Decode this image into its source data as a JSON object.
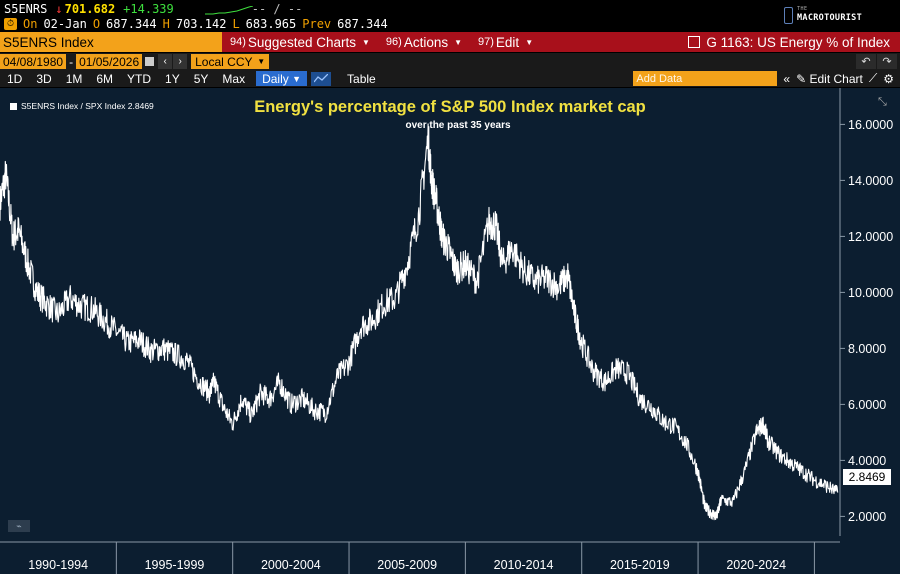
{
  "quote": {
    "ticker": "S5ENRS",
    "arrow": "↓",
    "last": "701.682",
    "change": "+14.339",
    "dashes": "-- / --",
    "on_label": "On",
    "date": "02-Jan",
    "open_label": "O",
    "open": "687.344",
    "high_label": "H",
    "high": "703.142",
    "low_label": "L",
    "low": "683.965",
    "prev_label": "Prev",
    "prev": "687.344"
  },
  "logo": {
    "small": "THE",
    "macro": "MACRO",
    "tourist": "TOURIST"
  },
  "command_bar": {
    "security": "S5ENRS Index",
    "menus": [
      {
        "num": "94)",
        "label": "Suggested Charts"
      },
      {
        "num": "96)",
        "label": "Actions"
      },
      {
        "num": "97)",
        "label": "Edit"
      }
    ],
    "title": "G 1163: US Energy % of Index"
  },
  "date_bar": {
    "start_date": "04/08/1980",
    "end_date": "01/05/2026",
    "separator": "-",
    "currency": "Local CCY"
  },
  "period_bar": {
    "periods": [
      "1D",
      "3D",
      "1M",
      "6M",
      "YTD",
      "1Y",
      "5Y",
      "Max"
    ],
    "frequency": "Daily",
    "table_label": "Table",
    "add_data_placeholder": "Add Data",
    "edit_chart_label": "Edit Chart"
  },
  "chart_data": {
    "type": "line",
    "title": "Energy's percentage of S&P 500 Index market cap",
    "subtitle": "over the past 35 years",
    "legend": [
      {
        "name": "S5ENRS Index / SPX Index 2.8469",
        "color": "#ffffff"
      }
    ],
    "last_value_label": "2.8469",
    "y_ticks": [
      "2.0000",
      "4.0000",
      "6.0000",
      "8.0000",
      "10.0000",
      "12.0000",
      "14.0000",
      "16.0000"
    ],
    "ylim": [
      1.3,
      17.3
    ],
    "x_tick_labels": [
      "1990-1994",
      "1995-1999",
      "2000-2004",
      "2005-2009",
      "2010-2014",
      "2015-2019",
      "2020-2024"
    ],
    "xlim": [
      1990,
      2026.1
    ],
    "series": [
      {
        "name": "S5ENRS Index / SPX Index",
        "x": [
          1990.0,
          1990.25,
          1990.55,
          1990.8,
          1991.2,
          1991.6,
          1992.0,
          1992.5,
          1993.0,
          1993.5,
          1994.0,
          1994.5,
          1995.0,
          1995.5,
          1996.0,
          1996.5,
          1997.0,
          1997.5,
          1998.0,
          1998.5,
          1999.0,
          1999.2,
          1999.6,
          2000.0,
          2000.4,
          2000.8,
          2001.2,
          2001.6,
          2002.0,
          2002.5,
          2003.0,
          2003.5,
          2004.0,
          2004.5,
          2005.0,
          2005.5,
          2006.0,
          2006.5,
          2007.0,
          2007.5,
          2008.0,
          2008.4,
          2008.55,
          2008.8,
          2009.0,
          2009.3,
          2009.6,
          2010.0,
          2010.5,
          2011.0,
          2011.3,
          2011.6,
          2012.0,
          2012.5,
          2013.0,
          2013.5,
          2014.0,
          2014.4,
          2014.7,
          2015.0,
          2015.5,
          2016.0,
          2016.5,
          2017.0,
          2017.5,
          2018.0,
          2018.5,
          2019.0,
          2019.5,
          2020.0,
          2020.3,
          2020.6,
          2020.8,
          2021.0,
          2021.5,
          2022.0,
          2022.5,
          2022.8,
          2023.0,
          2023.5,
          2024.0,
          2024.5,
          2025.0,
          2025.5,
          2026.0
        ],
        "y": [
          13.2,
          14.2,
          12.0,
          12.2,
          11.0,
          10.0,
          9.6,
          9.2,
          9.8,
          9.5,
          9.4,
          9.0,
          8.6,
          8.2,
          8.3,
          7.9,
          8.0,
          7.8,
          7.6,
          6.9,
          6.4,
          6.8,
          5.9,
          5.3,
          6.2,
          5.6,
          6.4,
          6.2,
          6.8,
          6.0,
          6.2,
          5.8,
          5.7,
          7.0,
          7.5,
          8.8,
          9.0,
          9.6,
          9.8,
          11.0,
          12.8,
          15.5,
          14.0,
          13.0,
          12.0,
          11.5,
          10.8,
          11.0,
          10.4,
          12.5,
          12.4,
          11.0,
          11.6,
          10.8,
          10.4,
          10.5,
          10.2,
          10.6,
          9.2,
          8.2,
          7.2,
          6.8,
          7.3,
          7.1,
          6.2,
          5.9,
          5.4,
          5.2,
          4.6,
          3.6,
          2.3,
          2.1,
          2.0,
          2.6,
          2.5,
          3.6,
          5.0,
          5.3,
          4.7,
          4.2,
          3.9,
          3.6,
          3.3,
          3.1,
          2.85
        ]
      }
    ]
  }
}
